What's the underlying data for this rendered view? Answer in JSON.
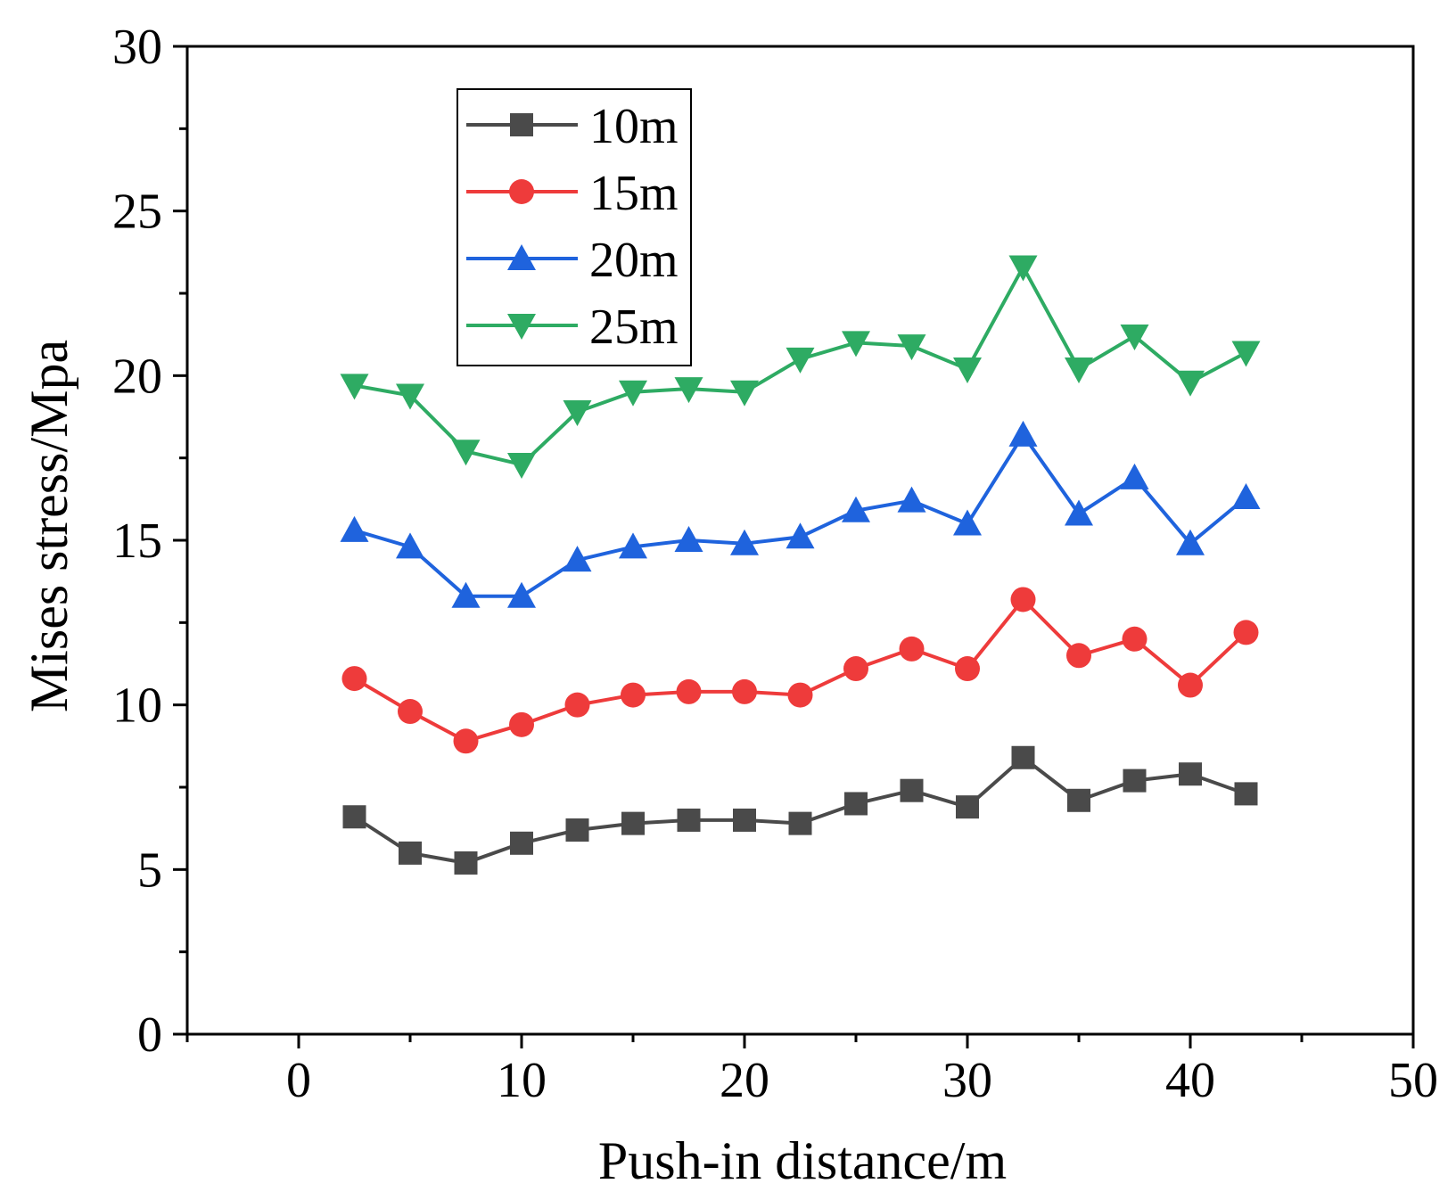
{
  "chart_data": {
    "type": "line",
    "title": "",
    "xlabel": "Push-in distance/m",
    "ylabel": "Mises stress/Mpa",
    "xlim": [
      -5,
      50
    ],
    "ylim": [
      0,
      30
    ],
    "xticks": [
      0,
      10,
      20,
      30,
      40,
      50
    ],
    "yticks": [
      0,
      5,
      10,
      15,
      20,
      25,
      30
    ],
    "x": [
      2.5,
      5,
      7.5,
      10,
      12.5,
      15,
      17.5,
      20,
      22.5,
      25,
      27.5,
      30,
      32.5,
      35,
      37.5,
      40,
      42.5
    ],
    "legend_position": "top-left",
    "series": [
      {
        "name": "10m",
        "color": "#4a4a4a",
        "marker": "square",
        "values": [
          6.6,
          5.5,
          5.2,
          5.8,
          6.2,
          6.4,
          6.5,
          6.5,
          6.4,
          7.0,
          7.4,
          6.9,
          8.4,
          7.1,
          7.7,
          7.9,
          7.3
        ]
      },
      {
        "name": "15m",
        "color": "#ee3b3b",
        "marker": "circle",
        "values": [
          10.8,
          9.8,
          8.9,
          9.4,
          10.0,
          10.3,
          10.4,
          10.4,
          10.3,
          11.1,
          11.7,
          11.1,
          13.2,
          11.5,
          12.0,
          10.6,
          12.2
        ]
      },
      {
        "name": "20m",
        "color": "#1f63dd",
        "marker": "triangle-up",
        "values": [
          15.3,
          14.8,
          13.3,
          13.3,
          14.4,
          14.8,
          15.0,
          14.9,
          15.1,
          15.9,
          16.2,
          15.5,
          18.2,
          15.8,
          16.9,
          14.9,
          16.3
        ]
      },
      {
        "name": "25m",
        "color": "#2eab63",
        "marker": "triangle-down",
        "values": [
          19.7,
          19.4,
          17.7,
          17.3,
          18.9,
          19.5,
          19.6,
          19.5,
          20.5,
          21.0,
          20.9,
          20.2,
          23.3,
          20.2,
          21.2,
          19.8,
          20.7
        ]
      }
    ]
  }
}
